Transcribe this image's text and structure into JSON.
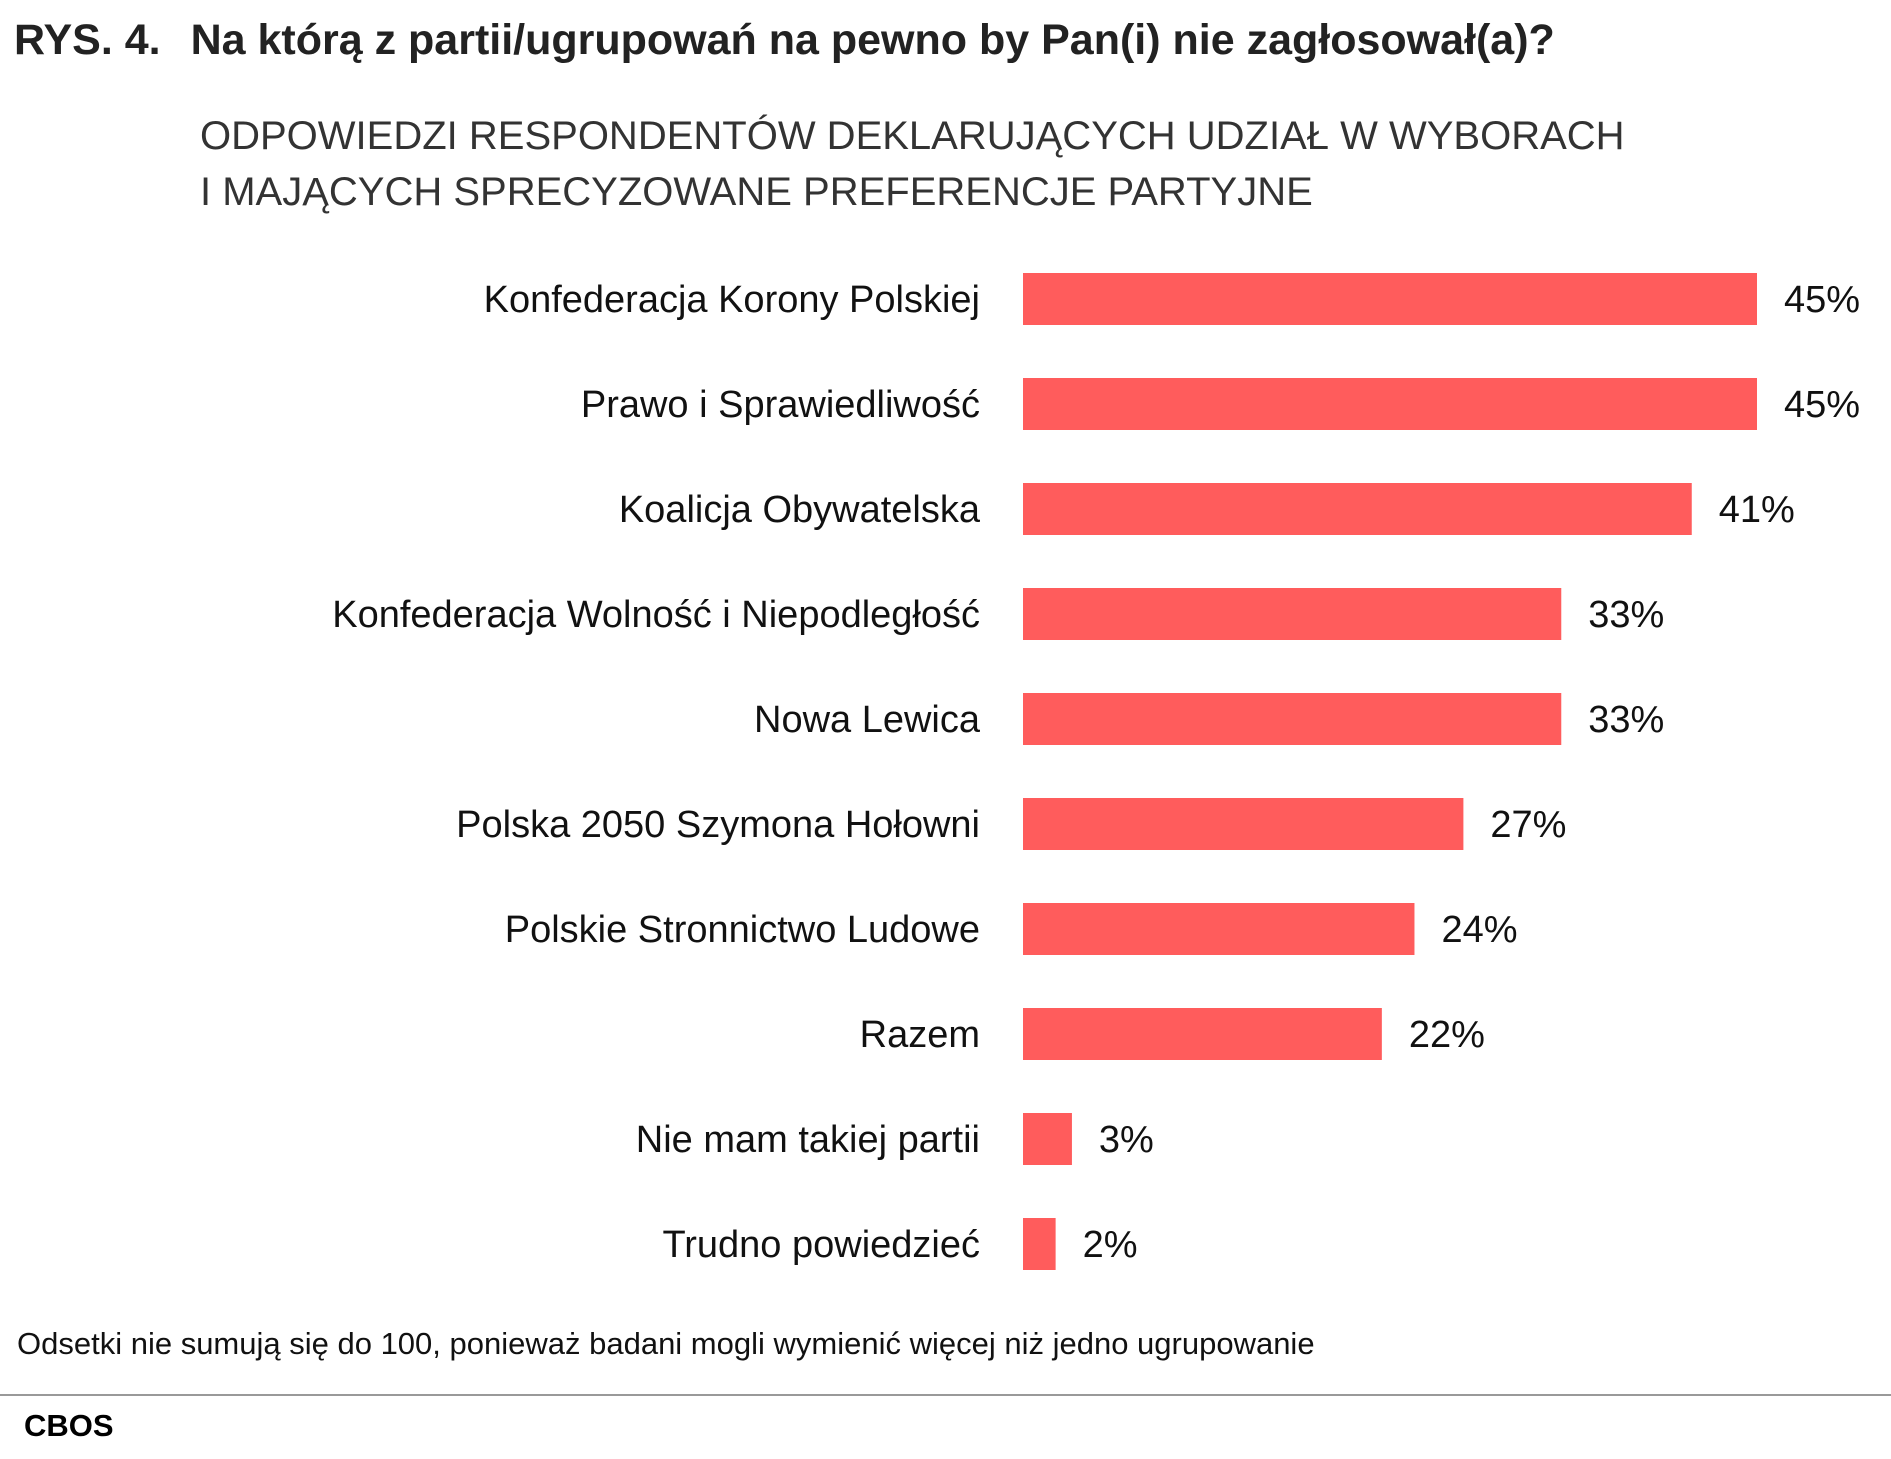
{
  "title_number": "RYS. 4.",
  "title": "Na którą z partii/ugrupowań na pewno by Pan(i) nie zagłosował(a)?",
  "subtitle_lines": [
    "ODPOWIEDZI RESPONDENTÓW DEKLARUJĄCYCH UDZIAŁ W WYBORACH",
    "I MAJĄCYCH SPRECYZOWANE PREFERENCJE PARTYJNE"
  ],
  "footnote": "Odsetki nie sumują się do 100, ponieważ badani mogli wymienić więcej niż jedno ugrupowanie",
  "source": "CBOS",
  "chart_data": {
    "type": "bar",
    "orientation": "horizontal",
    "categories": [
      "Konfederacja Korony Polskiej",
      "Prawo i Sprawiedliwość",
      "Koalicja Obywatelska",
      "Konfederacja Wolność i Niepodległość",
      "Nowa Lewica",
      "Polska 2050 Szymona Hołowni",
      "Polskie Stronnictwo Ludowe",
      "Razem",
      "Nie mam takiej partii",
      "Trudno powiedzieć"
    ],
    "values": [
      45,
      45,
      41,
      33,
      33,
      27,
      24,
      22,
      3,
      2
    ],
    "value_labels": [
      "45%",
      "45%",
      "41%",
      "33%",
      "33%",
      "27%",
      "24%",
      "22%",
      "3%",
      "2%"
    ],
    "bar_color": "#ff5c5c",
    "grid": false,
    "xlim": [
      0,
      45
    ]
  }
}
